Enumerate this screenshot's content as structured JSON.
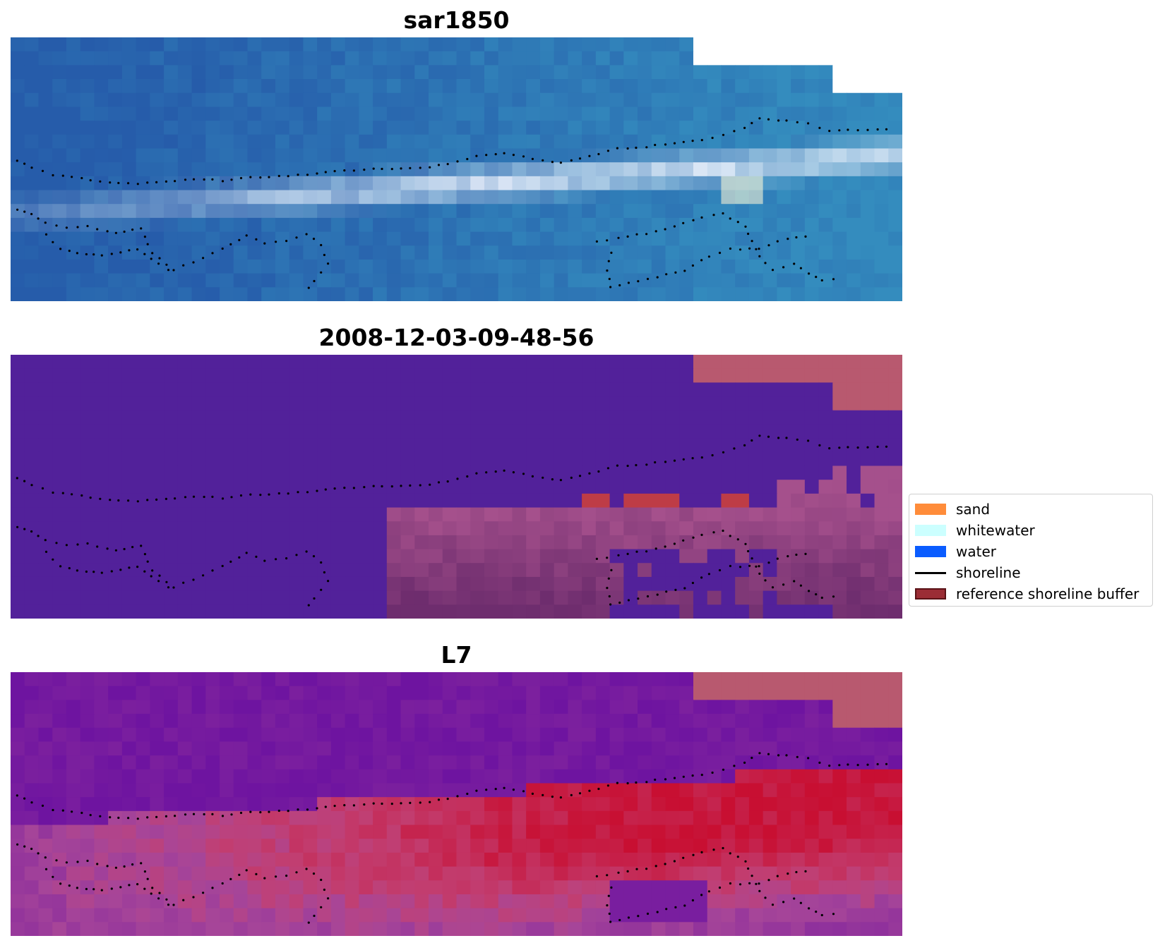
{
  "panels": [
    {
      "title": "sar1850",
      "palette": "rgb"
    },
    {
      "title": "2008-12-03-09-48-56",
      "palette": "classification"
    },
    {
      "title": "L7",
      "palette": "index"
    }
  ],
  "legend": {
    "items": [
      {
        "label": "sand",
        "kind": "patch",
        "color": "#ff8c3a",
        "edge": "none"
      },
      {
        "label": "whitewater",
        "kind": "patch",
        "color": "#ccffff",
        "edge": "none"
      },
      {
        "label": "water",
        "kind": "patch",
        "color": "#0a5cff",
        "edge": "none"
      },
      {
        "label": "shoreline",
        "kind": "line",
        "color": "#000000",
        "edge": "none"
      },
      {
        "label": "reference shoreline buffer",
        "kind": "patch",
        "color": "#9b2d35",
        "edge": "#5a1216"
      }
    ]
  },
  "colors": {
    "no_data": "#ffffff",
    "classification_water": "#52219a",
    "classification_buffer": "#b8596f",
    "shoreline_points": "#000000"
  }
}
